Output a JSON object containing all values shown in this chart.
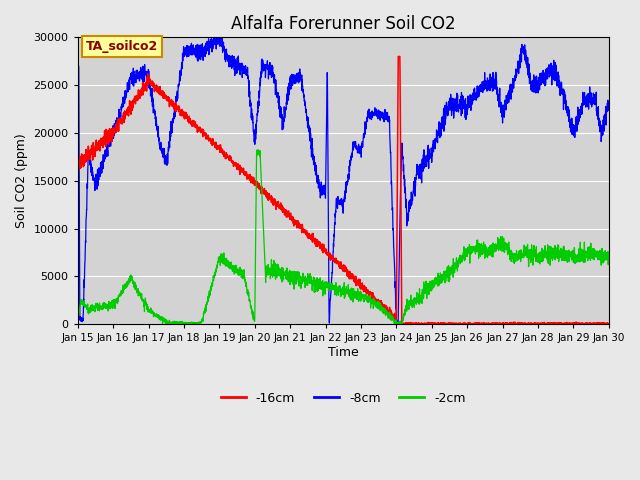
{
  "title": "Alfalfa Forerunner Soil CO2",
  "xlabel": "Time",
  "ylabel": "Soil CO2 (ppm)",
  "ylim": [
    0,
    30000
  ],
  "background_color": "#e8e8e8",
  "plot_bg_color": "#d3d3d3",
  "color_16cm": "#ff0000",
  "color_8cm": "#0000ff",
  "color_2cm": "#00cc00",
  "legend_label_16cm": "-16cm",
  "legend_label_8cm": "-8cm",
  "legend_label_2cm": "-2cm",
  "xtick_labels": [
    "Jan 15",
    "Jan 16",
    "Jan 17",
    "Jan 18",
    "Jan 19",
    "Jan 20",
    "Jan 21",
    "Jan 22",
    "Jan 23",
    "Jan 24",
    "Jan 25",
    "Jan 26",
    "Jan 27",
    "Jan 28",
    "Jan 29",
    "Jan 30"
  ],
  "annotation_text": "TA_soilco2",
  "annotation_bg": "#ffff99",
  "annotation_border": "#cc8800"
}
